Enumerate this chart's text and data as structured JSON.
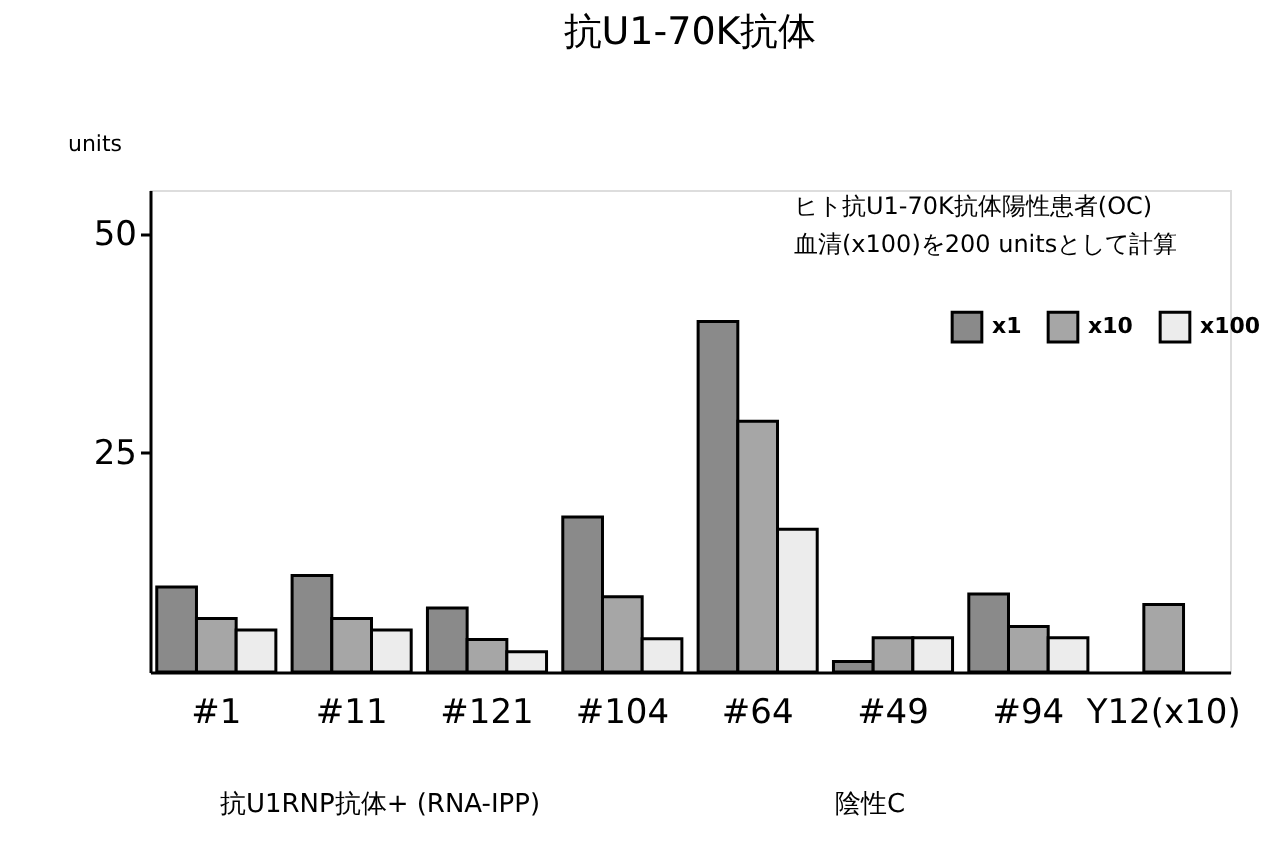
{
  "chart_data": {
    "type": "bar",
    "title": "抗U1-70K抗体",
    "ylabel": "units",
    "categories": [
      "#1",
      "#11",
      "#121",
      "#104",
      "#64",
      "#49",
      "#94",
      "Y12(x10)"
    ],
    "series": [
      {
        "name": "x1",
        "color": "#8a8a8a",
        "values": [
          9.7,
          11.0,
          7.3,
          17.7,
          40.0,
          1.2,
          8.9,
          null
        ]
      },
      {
        "name": "x10",
        "color": "#a6a6a6",
        "values": [
          6.1,
          6.1,
          3.7,
          8.6,
          28.6,
          3.9,
          5.2,
          7.7
        ]
      },
      {
        "name": "x100",
        "color": "#ececec",
        "values": [
          4.8,
          4.8,
          2.3,
          3.8,
          16.3,
          3.9,
          3.9,
          null
        ]
      }
    ],
    "ylim": [
      0,
      55
    ],
    "yticks": [
      25,
      50
    ],
    "legend": "top right",
    "annotations": [
      "ヒト抗U1-70K抗体陽性患者(OC)\n血清(x100)を200 unitsとして計算",
      "抗U1RNP抗体+ (RNA-IPP)",
      "陰性C"
    ]
  }
}
